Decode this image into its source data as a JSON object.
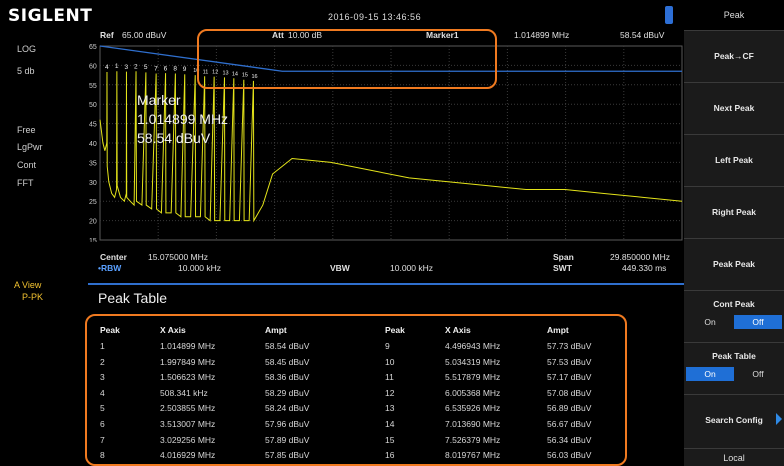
{
  "brand": "SIGLENT",
  "datetime": "2016-09-15  13:46:56",
  "left_status": {
    "scale_type": "LOG",
    "scale_div": "5 db",
    "trig": "Free",
    "det": "LgPwr",
    "sweep": "Cont",
    "mode": "FFT",
    "view_label": "A View",
    "view_mode": "P-PK"
  },
  "plot_header": {
    "ref_label": "Ref",
    "ref_value": "65.00 dBuV",
    "att_label": "Att",
    "att_value": "10.00 dB",
    "marker_label": "Marker1",
    "marker_freq": "1.014899 MHz",
    "marker_ampl": "58.54 dBuV"
  },
  "y_ticks": [
    "65",
    "60",
    "55",
    "50",
    "45",
    "40",
    "35",
    "30",
    "25",
    "20",
    "15"
  ],
  "marker_readout": {
    "label": "Marker",
    "freq": "1.014899 MHz",
    "ampl": "58.54 dBuV"
  },
  "peak_markers": [
    "4",
    "1",
    "3",
    "2",
    "5",
    "7",
    "6",
    "8",
    "9",
    "10",
    "11",
    "12",
    "13",
    "14",
    "15",
    "16"
  ],
  "axis_footer": {
    "center_label": "Center",
    "center_value": "15.075000 MHz",
    "rbw_label": "•RBW",
    "rbw_value": "10.000 kHz",
    "vbw_label": "VBW",
    "vbw_value": "10.000 kHz",
    "span_label": "Span",
    "span_value": "29.850000 MHz",
    "swt_label": "SWT",
    "swt_value": "449.330 ms"
  },
  "peak_table": {
    "title": "Peak Table",
    "headers": [
      "Peak",
      "X Axis",
      "Ampt",
      "Peak",
      "X Axis",
      "Ampt"
    ],
    "left_rows": [
      [
        "1",
        "1.014899 MHz",
        "58.54 dBuV"
      ],
      [
        "2",
        "1.997849 MHz",
        "58.45 dBuV"
      ],
      [
        "3",
        "1.506623 MHz",
        "58.36 dBuV"
      ],
      [
        "4",
        "508.341 kHz",
        "58.29 dBuV"
      ],
      [
        "5",
        "2.503855 MHz",
        "58.24 dBuV"
      ],
      [
        "6",
        "3.513007 MHz",
        "57.96 dBuV"
      ],
      [
        "7",
        "3.029256 MHz",
        "57.89 dBuV"
      ],
      [
        "8",
        "4.016929 MHz",
        "57.85 dBuV"
      ]
    ],
    "right_rows": [
      [
        "9",
        "4.496943 MHz",
        "57.73 dBuV"
      ],
      [
        "10",
        "5.034319 MHz",
        "57.53 dBuV"
      ],
      [
        "11",
        "5.517879 MHz",
        "57.17 dBuV"
      ],
      [
        "12",
        "6.005368 MHz",
        "57.08 dBuV"
      ],
      [
        "13",
        "6.535926 MHz",
        "56.89 dBuV"
      ],
      [
        "14",
        "7.013690 MHz",
        "56.67 dBuV"
      ],
      [
        "15",
        "7.526379 MHz",
        "56.34 dBuV"
      ],
      [
        "16",
        "8.019767 MHz",
        "56.03 dBuV"
      ]
    ]
  },
  "menu": {
    "title": "Peak",
    "items": [
      "Peak→CF",
      "Next Peak",
      "Left Peak",
      "Right Peak",
      "Peak Peak"
    ],
    "cont_peak": {
      "label": "Cont Peak",
      "on": "On",
      "off": "Off",
      "selected": "off"
    },
    "peak_table": {
      "label": "Peak Table",
      "on": "On",
      "off": "Off",
      "selected": "on"
    },
    "search_config": "Search Config",
    "local": "Local"
  },
  "colors": {
    "trace": "#e4e41a",
    "threshold_line": "#2f6fce",
    "accent": "#1f6fd6",
    "annotation": "#f07a20"
  },
  "chart_data": {
    "type": "line",
    "title": "",
    "xlabel": "",
    "ylabel": "",
    "x_unit": "MHz",
    "y_unit": "dBuV",
    "xlim": [
      0.15,
      30.0
    ],
    "ylim": [
      15,
      65
    ],
    "grid": true,
    "threshold_line": {
      "from": [
        0.15,
        65
      ],
      "to": [
        9.5,
        58.5
      ],
      "after": 58.5
    },
    "series": [
      {
        "x": [
          0.15,
          0.2,
          0.3,
          0.4,
          0.5,
          0.508,
          0.52,
          0.6,
          0.75,
          0.9,
          1.0,
          1.015,
          1.03,
          1.2,
          1.4,
          1.5,
          1.507,
          1.52,
          1.7,
          1.9,
          1.998,
          2.02,
          2.3,
          2.504,
          2.52,
          2.8,
          3.029,
          3.05,
          3.3,
          3.513,
          3.53,
          3.8,
          4.017,
          4.04,
          4.3,
          4.497,
          4.52,
          4.8,
          5.034,
          5.05,
          5.3,
          5.518,
          5.54,
          5.8,
          6.005,
          6.03,
          6.3,
          6.536,
          6.55,
          6.8,
          7.014,
          7.03,
          7.3,
          7.526,
          7.54,
          7.8,
          8.02,
          8.04,
          8.5,
          9.0,
          10,
          12,
          14,
          16,
          18,
          20,
          22,
          24,
          26,
          28,
          30
        ],
        "y": [
          46,
          44,
          40,
          38,
          40,
          58.3,
          34,
          30,
          27,
          26,
          28,
          58.5,
          29,
          26,
          25,
          27,
          58.4,
          26,
          25,
          24,
          58.5,
          25,
          24,
          58.2,
          24,
          23,
          57.9,
          23,
          22,
          58.0,
          22,
          22,
          57.9,
          22,
          21,
          57.7,
          21,
          21,
          57.5,
          21,
          21,
          57.2,
          21,
          20,
          57.1,
          20,
          20,
          56.9,
          20,
          20,
          56.7,
          20,
          20,
          56.3,
          20,
          20,
          56.0,
          20,
          24,
          32,
          36,
          35,
          33,
          31,
          30,
          29,
          28,
          28,
          27,
          26,
          25
        ]
      }
    ]
  }
}
